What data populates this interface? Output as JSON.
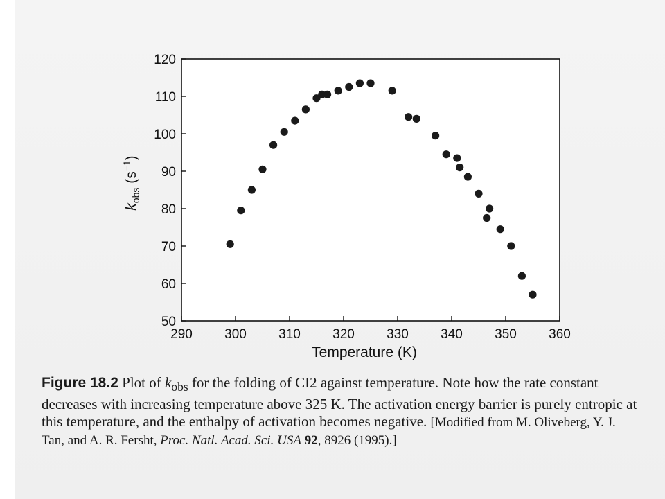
{
  "chart_data": {
    "type": "scatter",
    "xlabel": "Temperature (K)",
    "ylabel": "k",
    "ylabel_sub": "obs",
    "ylabel_unit_open": " (s",
    "ylabel_unit_sup": "−1",
    "ylabel_unit_close": ")",
    "xlim": [
      290,
      360
    ],
    "ylim": [
      50,
      120
    ],
    "x_ticks": [
      290,
      300,
      310,
      320,
      330,
      340,
      350,
      360
    ],
    "y_ticks": [
      50,
      60,
      70,
      80,
      90,
      100,
      110,
      120
    ],
    "grid": false,
    "points": [
      {
        "x": 299,
        "y": 70.5
      },
      {
        "x": 301,
        "y": 79.5
      },
      {
        "x": 303,
        "y": 85
      },
      {
        "x": 305,
        "y": 90.5
      },
      {
        "x": 307,
        "y": 97
      },
      {
        "x": 309,
        "y": 100.5
      },
      {
        "x": 311,
        "y": 103.5
      },
      {
        "x": 313,
        "y": 106.5
      },
      {
        "x": 315,
        "y": 109.5
      },
      {
        "x": 316,
        "y": 110.5
      },
      {
        "x": 317,
        "y": 110.5
      },
      {
        "x": 319,
        "y": 111.5
      },
      {
        "x": 321,
        "y": 112.5
      },
      {
        "x": 323,
        "y": 113.5
      },
      {
        "x": 325,
        "y": 113.5
      },
      {
        "x": 329,
        "y": 111.5
      },
      {
        "x": 332,
        "y": 104.5
      },
      {
        "x": 333.5,
        "y": 104
      },
      {
        "x": 337,
        "y": 99.5
      },
      {
        "x": 339,
        "y": 94.5
      },
      {
        "x": 341,
        "y": 93.5
      },
      {
        "x": 341.5,
        "y": 91
      },
      {
        "x": 343,
        "y": 88.5
      },
      {
        "x": 345,
        "y": 84
      },
      {
        "x": 346.5,
        "y": 77.5
      },
      {
        "x": 347,
        "y": 80
      },
      {
        "x": 349,
        "y": 74.5
      },
      {
        "x": 351,
        "y": 70
      },
      {
        "x": 353,
        "y": 62
      },
      {
        "x": 355,
        "y": 57
      }
    ]
  },
  "caption": {
    "label": "Figure 18.2",
    "part1": "  Plot of ",
    "k": "k",
    "k_sub": "obs",
    "part2": " for the folding of CI2 against temperature. Note how the rate constant decreases with increasing temperature above 325 K. The activation energy barrier is purely entropic at this temperature, and the enthalpy of activation becomes negative. ",
    "source_open": "[Modified from M. Oliveberg, Y. J. Tan, and A. R. Fersht, ",
    "journal": "Proc. Natl. Acad. Sci. USA",
    "volume": " 92",
    "source_close": ", 8926 (1995).]"
  }
}
